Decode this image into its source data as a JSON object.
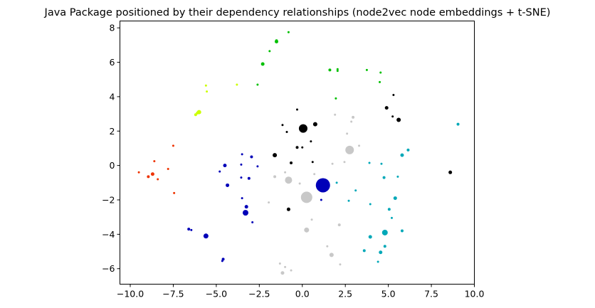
{
  "chart_data": {
    "type": "scatter",
    "title": "Java Package positioned by their dependency relationships (node2vec node embeddings + t-SNE)",
    "xlabel": "",
    "ylabel": "",
    "xlim": [
      -10.6,
      10.0
    ],
    "ylim": [
      -6.9,
      8.4
    ],
    "xticks": [
      -10.0,
      -7.5,
      -5.0,
      -2.5,
      0.0,
      2.5,
      5.0,
      7.5,
      10.0
    ],
    "xtick_labels": [
      "−10.0",
      "−7.5",
      "−5.0",
      "−2.5",
      "0.0",
      "2.5",
      "5.0",
      "7.5",
      "10.0"
    ],
    "yticks": [
      -6,
      -4,
      -2,
      0,
      2,
      4,
      6,
      8
    ],
    "ytick_labels": [
      "−6",
      "−4",
      "−2",
      "0",
      "2",
      "4",
      "6",
      "8"
    ],
    "grid": false,
    "legend": "none",
    "series": [
      {
        "color": "#00c000",
        "points": [
          [
            -0.8,
            7.75,
            1.5
          ],
          [
            -1.5,
            7.2,
            2.5
          ],
          [
            -1.5,
            7.25,
            2
          ],
          [
            -1.9,
            6.65,
            1.5
          ],
          [
            -2.3,
            5.9,
            2.5
          ],
          [
            -2.6,
            4.7,
            1.5
          ],
          [
            1.6,
            5.55,
            2
          ],
          [
            2.05,
            5.6,
            1.5
          ],
          [
            2.05,
            5.5,
            1.5
          ],
          [
            3.75,
            5.55,
            1.5
          ],
          [
            4.55,
            5.4,
            1.5
          ],
          [
            4.5,
            4.85,
            1.5
          ],
          [
            1.95,
            3.9,
            1.5
          ]
        ]
      },
      {
        "color": "#ccff00",
        "points": [
          [
            -5.6,
            4.65,
            1.5
          ],
          [
            -5.55,
            4.3,
            1.5
          ],
          [
            -3.8,
            4.7,
            1.5
          ],
          [
            -6.0,
            3.1,
            3
          ],
          [
            -6.2,
            2.95,
            2
          ],
          [
            -6.1,
            3.05,
            2
          ]
        ]
      },
      {
        "color": "#000000",
        "points": [
          [
            5.3,
            4.1,
            1.5
          ],
          [
            4.9,
            3.35,
            2.5
          ],
          [
            5.25,
            2.85,
            1.5
          ],
          [
            5.6,
            2.65,
            3
          ],
          [
            -0.3,
            3.25,
            1.5
          ],
          [
            0.05,
            2.15,
            6
          ],
          [
            0.75,
            2.4,
            3
          ],
          [
            -1.15,
            2.35,
            1.5
          ],
          [
            -0.9,
            1.95,
            1.5
          ],
          [
            0.5,
            1.4,
            1.5
          ],
          [
            -0.3,
            1.05,
            2
          ],
          [
            0.0,
            1.05,
            1.5
          ],
          [
            -1.6,
            0.6,
            3
          ],
          [
            -0.65,
            0.15,
            2
          ],
          [
            0.6,
            0.2,
            1.5
          ],
          [
            -0.8,
            -2.55,
            2.5
          ],
          [
            8.6,
            -0.4,
            2.5
          ]
        ]
      },
      {
        "color": "#c8c8c8",
        "points": [
          [
            1.9,
            2.95,
            1.5
          ],
          [
            2.95,
            2.8,
            2
          ],
          [
            2.85,
            2.55,
            1.5
          ],
          [
            2.6,
            1.85,
            1.5
          ],
          [
            2.75,
            0.9,
            6
          ],
          [
            3.3,
            1.15,
            1.5
          ],
          [
            2.45,
            0.2,
            1.5
          ],
          [
            1.75,
            0.1,
            1.5
          ],
          [
            0.7,
            -0.5,
            1.5
          ],
          [
            -1.6,
            -0.65,
            2
          ],
          [
            -1.0,
            -0.4,
            1.5
          ],
          [
            -0.8,
            -0.85,
            5
          ],
          [
            -0.15,
            -1.05,
            1.5
          ],
          [
            0.25,
            -1.85,
            8
          ],
          [
            -1.95,
            -2.15,
            1.5
          ],
          [
            0.55,
            -3.15,
            1.5
          ],
          [
            0.25,
            -3.75,
            3.5
          ],
          [
            2.15,
            -3.45,
            2
          ],
          [
            1.45,
            -4.7,
            1.5
          ],
          [
            1.7,
            -5.2,
            3
          ],
          [
            2.2,
            -5.75,
            1.5
          ],
          [
            -1.3,
            -5.7,
            1.5
          ],
          [
            -1.0,
            -5.9,
            1.5
          ],
          [
            -1.15,
            -6.25,
            2.5
          ],
          [
            -0.65,
            -6.1,
            1.5
          ]
        ]
      },
      {
        "color": "#00a8b8",
        "points": [
          [
            9.05,
            2.4,
            2
          ],
          [
            6.15,
            0.9,
            2
          ],
          [
            5.8,
            0.6,
            2.5
          ],
          [
            3.9,
            0.15,
            1.5
          ],
          [
            4.6,
            0.1,
            1.5
          ],
          [
            2.0,
            -1.0,
            1.5
          ],
          [
            4.75,
            -0.7,
            2
          ],
          [
            5.55,
            -0.65,
            1.5
          ],
          [
            3.1,
            -1.45,
            1.5
          ],
          [
            2.7,
            -2.05,
            1.5
          ],
          [
            5.4,
            -1.9,
            2.5
          ],
          [
            3.95,
            -2.25,
            1.5
          ],
          [
            5.05,
            -2.55,
            2
          ],
          [
            5.2,
            -3.05,
            1.5
          ],
          [
            4.8,
            -3.9,
            4
          ],
          [
            5.8,
            -3.8,
            2
          ],
          [
            3.95,
            -4.15,
            2.5
          ],
          [
            4.8,
            -4.7,
            2
          ],
          [
            3.6,
            -4.95,
            2
          ],
          [
            4.55,
            -5.05,
            2.5
          ],
          [
            4.4,
            -5.6,
            1.5
          ]
        ]
      },
      {
        "color": "#0000b8",
        "points": [
          [
            1.2,
            -1.15,
            10
          ],
          [
            -3.5,
            0.65,
            1.5
          ],
          [
            -2.95,
            0.5,
            2
          ],
          [
            -4.5,
            0.0,
            2.5
          ],
          [
            -3.55,
            0.05,
            1.5
          ],
          [
            -2.6,
            -0.05,
            1.5
          ],
          [
            -4.8,
            -0.35,
            1.5
          ],
          [
            -3.55,
            -0.7,
            1.5
          ],
          [
            -3.1,
            -0.75,
            2
          ],
          [
            -4.35,
            -1.15,
            2.5
          ],
          [
            1.1,
            -2.0,
            1.5
          ],
          [
            -3.5,
            -1.9,
            1.5
          ],
          [
            -3.25,
            -2.4,
            2.5
          ],
          [
            -3.3,
            -2.75,
            4
          ],
          [
            -2.9,
            -3.3,
            1.5
          ],
          [
            -6.6,
            -3.7,
            2
          ],
          [
            -6.45,
            -3.75,
            1.5
          ],
          [
            -5.6,
            -4.1,
            3.5
          ],
          [
            -4.6,
            -5.45,
            2
          ],
          [
            -4.65,
            -5.55,
            1.5
          ]
        ]
      },
      {
        "color": "#ee3300",
        "points": [
          [
            -7.5,
            1.15,
            1.5
          ],
          [
            -8.6,
            0.25,
            1.5
          ],
          [
            -7.8,
            -0.2,
            1.5
          ],
          [
            -9.5,
            -0.4,
            1.5
          ],
          [
            -8.7,
            -0.5,
            2.5
          ],
          [
            -8.95,
            -0.65,
            2
          ],
          [
            -8.4,
            -0.8,
            1.5
          ],
          [
            -7.45,
            -1.6,
            1.5
          ]
        ]
      }
    ]
  }
}
